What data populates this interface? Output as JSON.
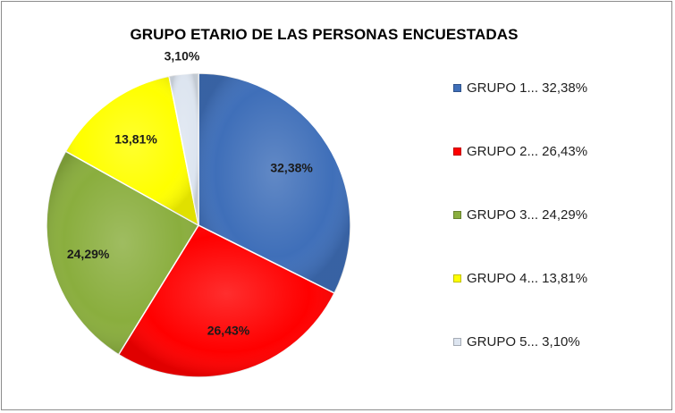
{
  "chart_data": {
    "type": "pie",
    "title": "GRUPO ETARIO DE LAS PERSONAS ENCUESTADAS",
    "categories": [
      "GRUPO 1",
      "GRUPO 2",
      "GRUPO 3",
      "GRUPO 4",
      "GRUPO 5"
    ],
    "values": [
      32.38,
      26.43,
      24.29,
      13.81,
      3.1
    ],
    "data_labels": [
      "32,38%",
      "26,43%",
      "24,29%",
      "13,81%",
      "3,10%"
    ],
    "legend_labels": [
      "GRUPO 1... 32,38%",
      "GRUPO 2... 26,43%",
      "GRUPO 3... 24,29%",
      "GRUPO 4... 13,81%",
      "GRUPO 5... 3,10%"
    ],
    "colors": [
      "#3f6fb9",
      "#ff0000",
      "#8aae3e",
      "#ffff00",
      "#dde5f0"
    ],
    "legend_position": "right",
    "start_angle": "12 o'clock",
    "direction": "clockwise"
  }
}
